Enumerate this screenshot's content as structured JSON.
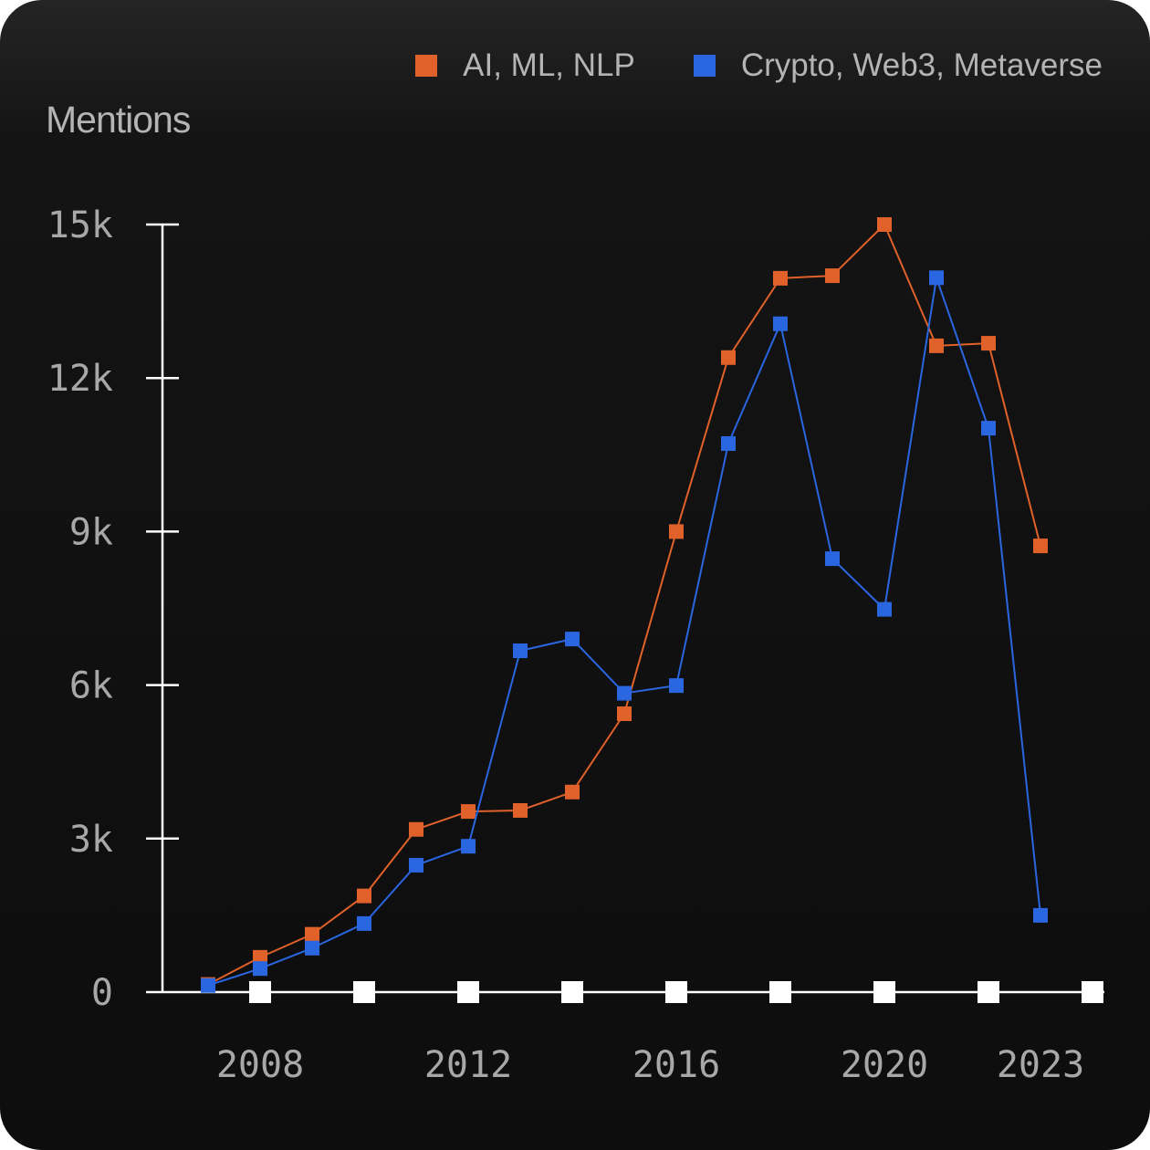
{
  "chart_data": {
    "type": "line",
    "title": "",
    "xlabel": "",
    "ylabel": "Mentions",
    "x": [
      2007,
      2008,
      2009,
      2010,
      2011,
      2012,
      2013,
      2014,
      2015,
      2016,
      2017,
      2018,
      2019,
      2020,
      2021,
      2022,
      2023
    ],
    "xlim": [
      2006.0,
      2024.0
    ],
    "ylim": [
      0,
      15000
    ],
    "x_ticks": [
      {
        "value": 2008,
        "label": "2008"
      },
      {
        "value": 2012,
        "label": "2012"
      },
      {
        "value": 2016,
        "label": "2016"
      },
      {
        "value": 2020,
        "label": "2020"
      },
      {
        "value": 2023,
        "label": "2023"
      }
    ],
    "y_ticks": [
      {
        "value": 0,
        "label": "0"
      },
      {
        "value": 3000,
        "label": "3k"
      },
      {
        "value": 6000,
        "label": "6k"
      },
      {
        "value": 9000,
        "label": "9k"
      },
      {
        "value": 12000,
        "label": "12k"
      },
      {
        "value": 15000,
        "label": "15k"
      }
    ],
    "x_axis_markers": [
      2008,
      2010,
      2012,
      2014,
      2016,
      2018,
      2020,
      2022,
      2024
    ],
    "grid": false,
    "legend_position": "top-right",
    "series": [
      {
        "name": "AI, ML, NLP",
        "color": "#e0612a",
        "values": [
          150,
          680,
          1130,
          1880,
          3180,
          3530,
          3550,
          3910,
          5440,
          9000,
          12400,
          13950,
          14000,
          15000,
          12630,
          12680,
          8720
        ]
      },
      {
        "name": "Crypto, Web3, Metaverse",
        "color": "#2a66e0",
        "values": [
          130,
          460,
          860,
          1340,
          2480,
          2850,
          6670,
          6900,
          5840,
          5990,
          10720,
          13060,
          8470,
          7480,
          13960,
          11020,
          1500
        ]
      }
    ]
  }
}
